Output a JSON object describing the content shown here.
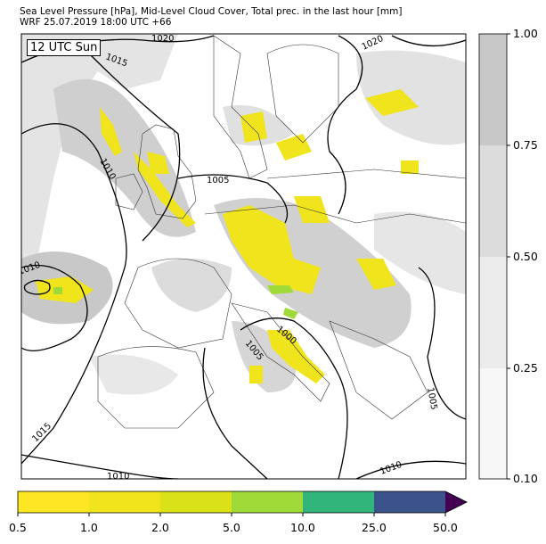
{
  "title": {
    "line1": "Sea Level Pressure [hPa], Mid-Level Cloud Cover, Total prec. in the last hour [mm]",
    "line2": "WRF 25.07.2019 18:00 UTC +66"
  },
  "map": {
    "valid_time_label": "12 UTC Sun",
    "isobar_labels": [
      "1020",
      "1015",
      "1020",
      "1010",
      "1005",
      "1010",
      "1000",
      "1005",
      "1015",
      "1010",
      "1010",
      "1005"
    ]
  },
  "cloud_colorbar": {
    "ticks": [
      "1.00",
      "0.75",
      "0.50",
      "0.25",
      "0.10"
    ],
    "colors": [
      "#c8c8c8",
      "#dcdcdc",
      "#ececec",
      "#f7f7f7"
    ]
  },
  "precip_colorbar": {
    "ticks": [
      "0.5",
      "1.0",
      "2.0",
      "5.0",
      "10.0",
      "25.0",
      "50.0"
    ],
    "colors": [
      "#fde725",
      "#f0e41d",
      "#d9e219",
      "#a0da39",
      "#31b57b",
      "#3b528b",
      "#440154"
    ],
    "extend": "max"
  }
}
